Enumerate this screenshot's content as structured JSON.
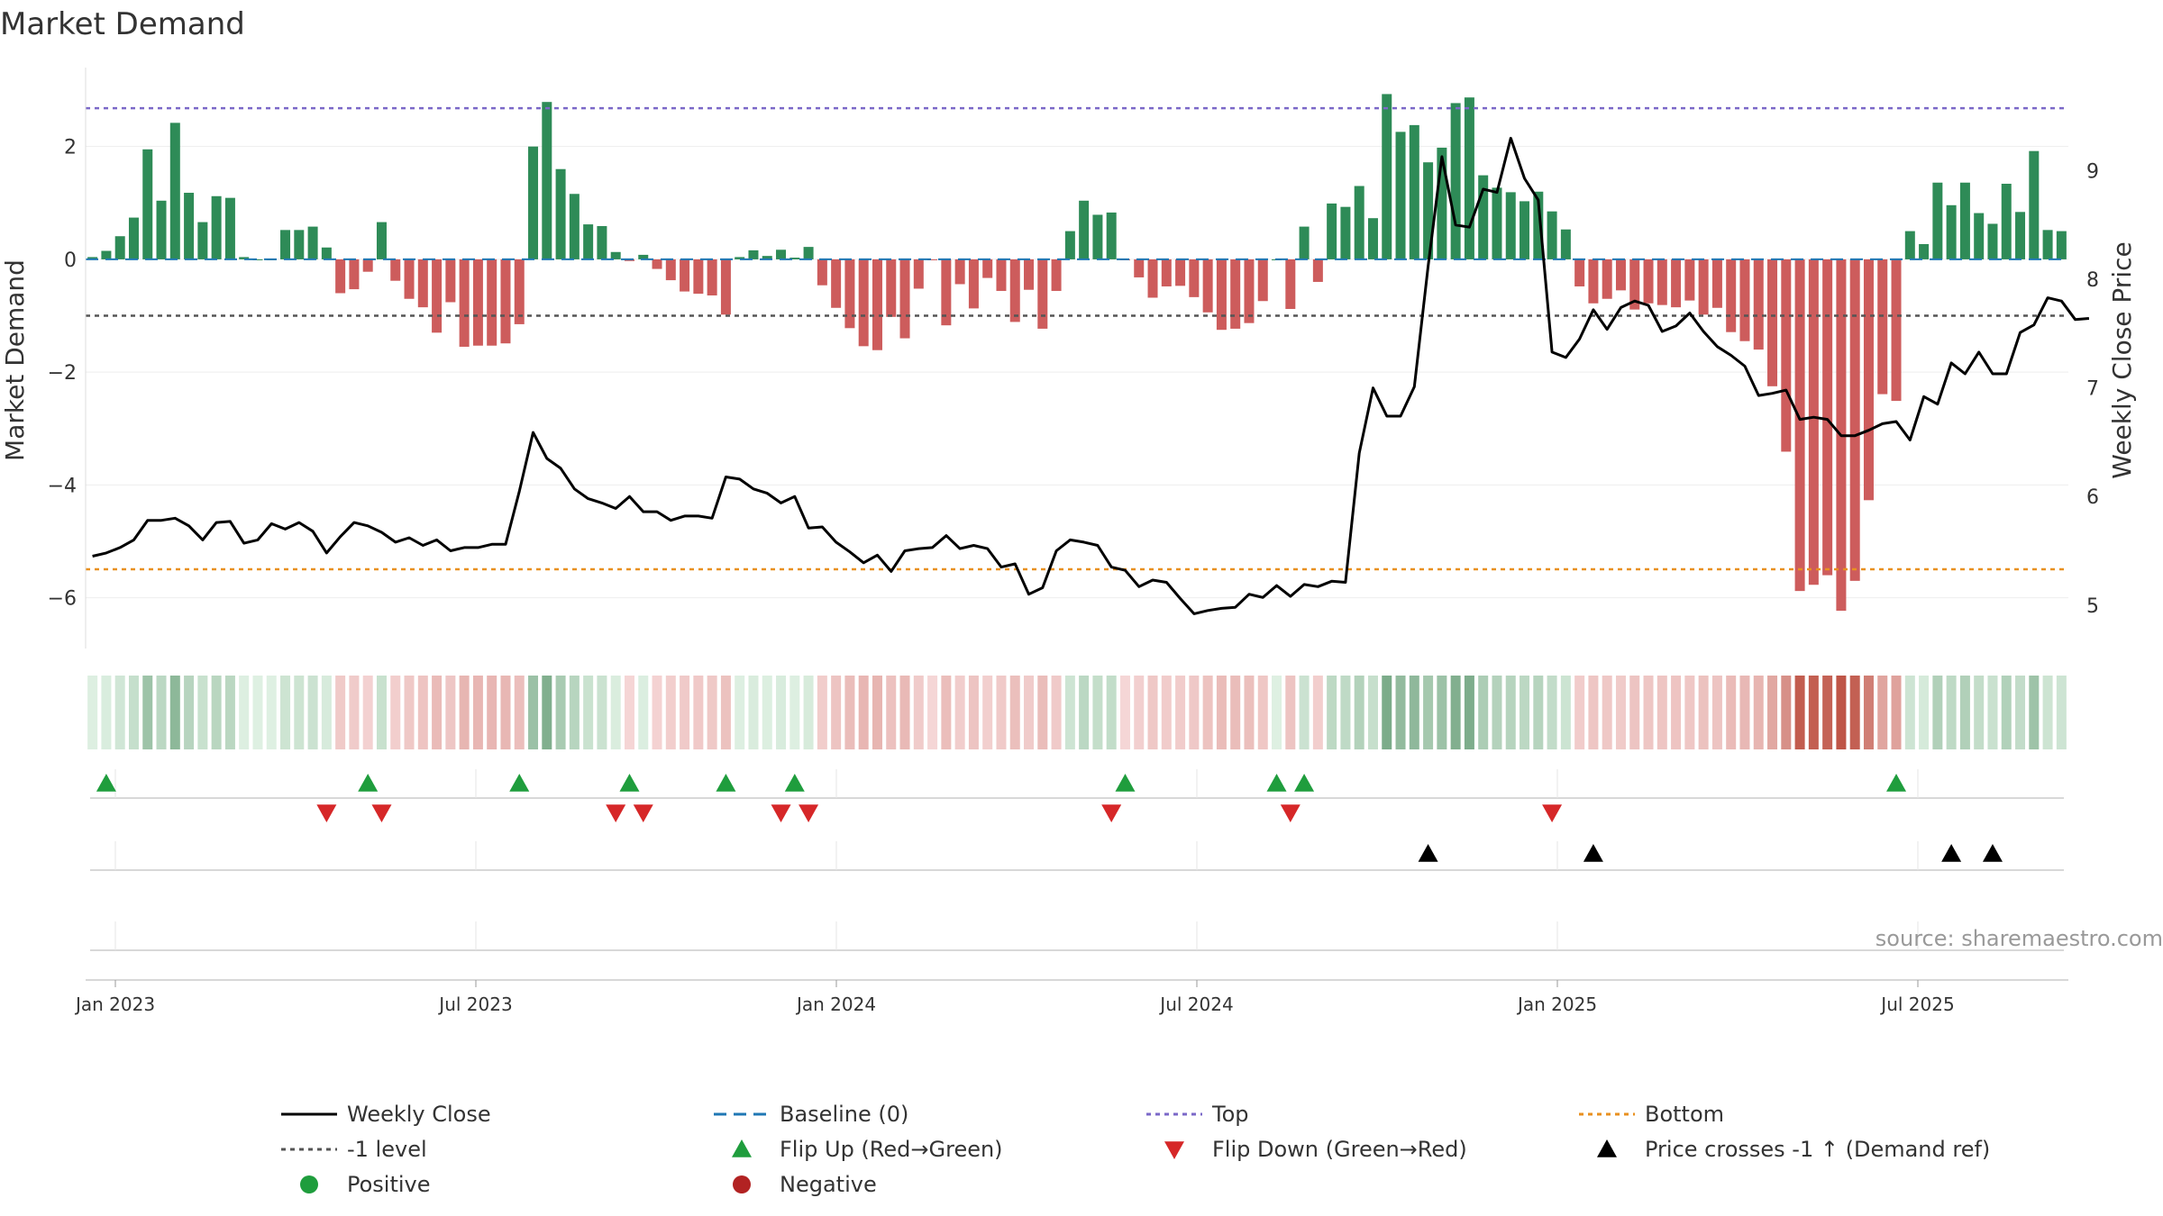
{
  "chart_data": {
    "type": "bar",
    "title": "Market Demand",
    "ylabel": "Market Demand",
    "y2label": "Weekly Close Price",
    "ylim": [
      -6.9,
      3.4
    ],
    "y2lim": [
      4.6,
      9.95
    ],
    "yticks": [
      2,
      0,
      -2,
      -4,
      -6
    ],
    "ytick_labels": [
      "2",
      "0",
      "−2",
      "−4",
      "−6"
    ],
    "y2ticks": [
      9,
      8,
      7,
      6,
      5
    ],
    "y2tick_labels": [
      "9",
      "8",
      "7",
      "6",
      "5"
    ],
    "xticks": [
      "Jan 2023",
      "Jul 2023",
      "Jan 2024",
      "Jul 2024",
      "Jan 2025",
      "Jul 2025"
    ],
    "reference_lines": {
      "top": 2.68,
      "minus_one": -1,
      "baseline": 0,
      "bottom": 5.33
    },
    "colors": {
      "positive": "#2e8b57",
      "negative": "#cd5c5c",
      "price": "#000000",
      "top": "#7b68c8",
      "bottom": "#e8901f",
      "level": "#555555",
      "baseline": "#1f77b4",
      "flip_up": "#1f9d3d",
      "flip_down": "#d62728",
      "cross": "#000000",
      "positive_dot": "#1f9d3d",
      "negative_dot": "#b22222"
    },
    "demand": [
      0.04,
      0.15,
      0.41,
      0.74,
      1.95,
      1.04,
      2.42,
      1.18,
      0.66,
      1.12,
      1.09,
      0.04,
      0.0,
      0.0,
      0.52,
      0.52,
      0.58,
      0.21,
      -0.6,
      -0.53,
      -0.22,
      0.66,
      -0.38,
      -0.7,
      -0.85,
      -1.3,
      -0.76,
      -1.55,
      -1.53,
      -1.53,
      -1.49,
      -1.15,
      2.0,
      2.79,
      1.6,
      1.16,
      0.62,
      0.59,
      0.13,
      -0.03,
      0.08,
      -0.17,
      -0.37,
      -0.57,
      -0.61,
      -0.64,
      -0.98,
      0.04,
      0.16,
      0.06,
      0.17,
      0.03,
      0.22,
      -0.46,
      -0.86,
      -1.22,
      -1.54,
      -1.61,
      -1.02,
      -1.4,
      -0.52,
      -0.01,
      -1.17,
      -0.44,
      -0.87,
      -0.33,
      -0.56,
      -1.11,
      -0.54,
      -1.23,
      -0.56,
      0.5,
      1.04,
      0.79,
      0.83,
      -0.01,
      -0.32,
      -0.68,
      -0.48,
      -0.47,
      -0.67,
      -0.94,
      -1.25,
      -1.23,
      -1.13,
      -0.74,
      0.0,
      -0.88,
      0.58,
      -0.4,
      0.99,
      0.93,
      1.3,
      0.73,
      2.93,
      2.26,
      2.38,
      1.72,
      1.98,
      2.77,
      2.87,
      1.49,
      1.27,
      1.19,
      1.03,
      1.2,
      0.85,
      0.53,
      -0.48,
      -0.78,
      -0.7,
      -0.55,
      -0.89,
      -0.78,
      -0.81,
      -0.85,
      -0.73,
      -0.98,
      -0.86,
      -1.29,
      -1.45,
      -1.6,
      -2.25,
      -3.41,
      -5.88,
      -5.77,
      -5.6,
      -6.23,
      -5.7,
      -4.27,
      -2.39,
      -2.51,
      0.5,
      0.27,
      1.36,
      0.96,
      1.36,
      0.82,
      0.63,
      1.34,
      0.84,
      1.92,
      0.52,
      0.5
    ],
    "price": [
      5.45,
      5.48,
      5.53,
      5.6,
      5.78,
      5.78,
      5.8,
      5.73,
      5.6,
      5.76,
      5.77,
      5.57,
      5.6,
      5.75,
      5.7,
      5.76,
      5.68,
      5.48,
      5.63,
      5.76,
      5.73,
      5.67,
      5.58,
      5.62,
      5.55,
      5.6,
      5.5,
      5.53,
      5.53,
      5.56,
      5.56,
      6.05,
      6.59,
      6.35,
      6.26,
      6.07,
      5.98,
      5.94,
      5.89,
      6.0,
      5.86,
      5.86,
      5.78,
      5.82,
      5.82,
      5.8,
      6.18,
      6.16,
      6.07,
      6.03,
      5.94,
      6.0,
      5.71,
      5.72,
      5.58,
      5.49,
      5.39,
      5.46,
      5.31,
      5.5,
      5.52,
      5.53,
      5.64,
      5.52,
      5.55,
      5.52,
      5.35,
      5.38,
      5.1,
      5.16,
      5.5,
      5.6,
      5.58,
      5.55,
      5.35,
      5.32,
      5.17,
      5.23,
      5.21,
      5.06,
      4.92,
      4.95,
      4.97,
      4.98,
      5.1,
      5.07,
      5.18,
      5.08,
      5.19,
      5.17,
      5.22,
      5.21,
      6.4,
      7.0,
      6.74,
      6.74,
      7.01,
      8.12,
      9.13,
      8.5,
      8.48,
      8.83,
      8.8,
      9.3,
      8.93,
      8.73,
      7.33,
      7.28,
      7.45,
      7.72,
      7.54,
      7.74,
      7.8,
      7.76,
      7.52,
      7.57,
      7.69,
      7.52,
      7.38,
      7.3,
      7.2,
      6.93,
      6.95,
      6.98,
      6.71,
      6.73,
      6.71,
      6.56,
      6.56,
      6.61,
      6.67,
      6.69,
      6.52,
      6.92,
      6.85,
      7.23,
      7.13,
      7.33,
      7.13,
      7.13,
      7.51,
      7.58,
      7.83,
      7.8,
      7.63,
      7.64
    ],
    "flip_up": [
      1,
      20,
      31,
      39,
      46,
      51,
      75,
      86,
      88,
      131
    ],
    "flip_down": [
      17,
      21,
      38,
      40,
      50,
      52,
      74,
      87,
      106
    ],
    "price_cross_up": [
      97,
      109,
      135,
      138
    ],
    "legend": [
      {
        "key": "weekly_close",
        "label": "Weekly Close",
        "symbol": "line-solid",
        "color": "#000000"
      },
      {
        "key": "baseline",
        "label": "Baseline (0)",
        "symbol": "line-dashed",
        "color": "#1f77b4"
      },
      {
        "key": "top",
        "label": "Top",
        "symbol": "line-dotted",
        "color": "#7b68c8"
      },
      {
        "key": "bottom",
        "label": "Bottom",
        "symbol": "line-dotted",
        "color": "#e8901f"
      },
      {
        "key": "minus_one",
        "label": "-1 level",
        "symbol": "line-dotted",
        "color": "#555555"
      },
      {
        "key": "flip_up",
        "label": "Flip Up (Red→Green)",
        "symbol": "triangle-up",
        "color": "#1f9d3d"
      },
      {
        "key": "flip_down",
        "label": "Flip Down (Green→Red)",
        "symbol": "triangle-down",
        "color": "#d62728"
      },
      {
        "key": "cross",
        "label": "Price crosses -1 ↑ (Demand ref)",
        "symbol": "triangle-up",
        "color": "#000000"
      },
      {
        "key": "positive",
        "label": "Positive",
        "symbol": "circle",
        "color": "#1f9d3d"
      },
      {
        "key": "negative",
        "label": "Negative",
        "symbol": "circle",
        "color": "#b22222"
      }
    ],
    "source": "source: sharemaestro.com"
  }
}
